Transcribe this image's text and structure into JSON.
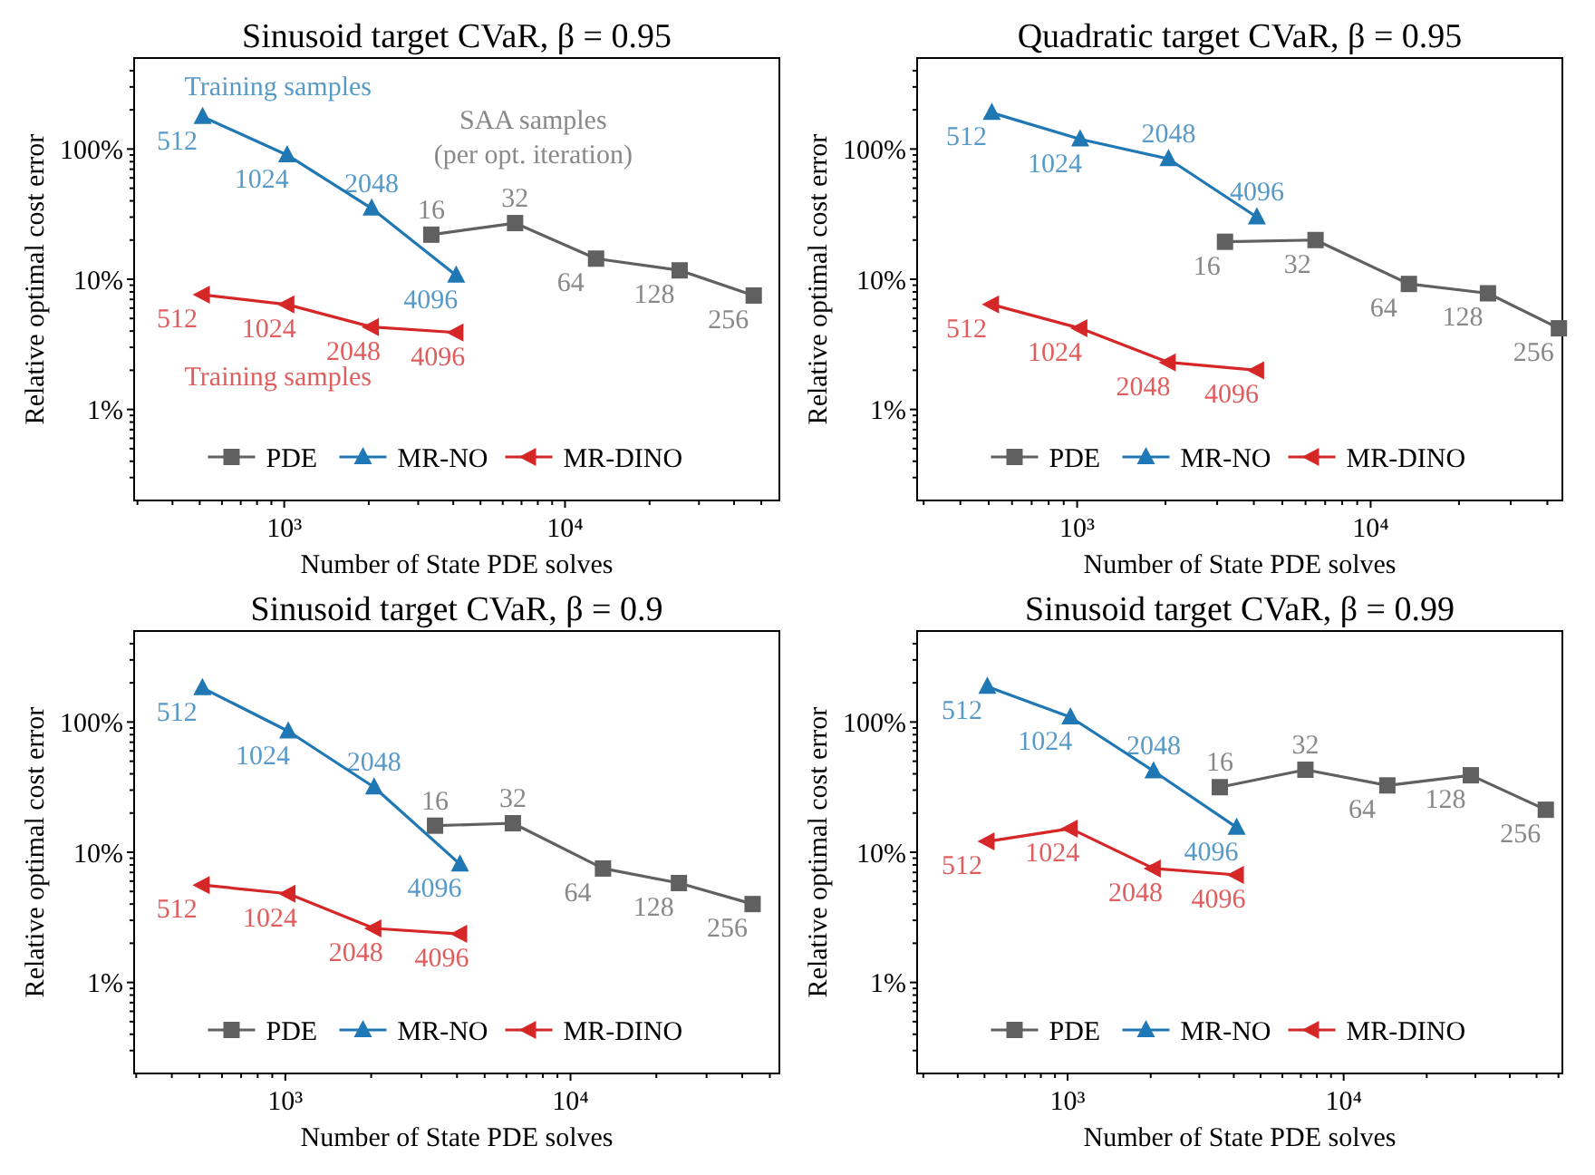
{
  "chart_data": [
    {
      "type": "line",
      "title": "Sinusoid target CVaR, β = 0.95",
      "xlabel": "Number of State PDE solves",
      "ylabel": "Relative optimal cost error",
      "log": "xy",
      "legend": "bottom",
      "xlim": [
        292,
        58000
      ],
      "ylim": [
        0.2,
        500
      ],
      "xticks": [
        {
          "value": 300,
          "label": null
        },
        {
          "value": 400,
          "label": null
        },
        {
          "value": 500,
          "label": null
        },
        {
          "value": 600,
          "label": null
        },
        {
          "value": 700,
          "label": null
        },
        {
          "value": 800,
          "label": null
        },
        {
          "value": 900,
          "label": null
        },
        {
          "value": 1000,
          "label": "10³"
        },
        {
          "value": 2000,
          "label": null
        },
        {
          "value": 3000,
          "label": null
        },
        {
          "value": 4000,
          "label": null
        },
        {
          "value": 5000,
          "label": null
        },
        {
          "value": 6000,
          "label": null
        },
        {
          "value": 7000,
          "label": null
        },
        {
          "value": 8000,
          "label": null
        },
        {
          "value": 9000,
          "label": null
        },
        {
          "value": 10000,
          "label": "10⁴"
        },
        {
          "value": 20000,
          "label": null
        },
        {
          "value": 30000,
          "label": null
        },
        {
          "value": 40000,
          "label": null
        },
        {
          "value": 50000,
          "label": null
        }
      ],
      "yticks": [
        {
          "value": 0.3,
          "label": null
        },
        {
          "value": 0.4,
          "label": null
        },
        {
          "value": 0.5,
          "label": null
        },
        {
          "value": 0.6,
          "label": null
        },
        {
          "value": 0.7,
          "label": null
        },
        {
          "value": 0.8,
          "label": null
        },
        {
          "value": 0.9,
          "label": null
        },
        {
          "value": 1,
          "label": "1%"
        },
        {
          "value": 2,
          "label": null
        },
        {
          "value": 3,
          "label": null
        },
        {
          "value": 4,
          "label": null
        },
        {
          "value": 5,
          "label": null
        },
        {
          "value": 6,
          "label": null
        },
        {
          "value": 7,
          "label": null
        },
        {
          "value": 8,
          "label": null
        },
        {
          "value": 9,
          "label": null
        },
        {
          "value": 10,
          "label": "10%"
        },
        {
          "value": 20,
          "label": null
        },
        {
          "value": 30,
          "label": null
        },
        {
          "value": 40,
          "label": null
        },
        {
          "value": 50,
          "label": null
        },
        {
          "value": 60,
          "label": null
        },
        {
          "value": 70,
          "label": null
        },
        {
          "value": 80,
          "label": null
        },
        {
          "value": 90,
          "label": null
        },
        {
          "value": 100,
          "label": "100%"
        },
        {
          "value": 200,
          "label": null
        },
        {
          "value": 300,
          "label": null
        },
        {
          "value": 400,
          "label": null
        }
      ],
      "series": [
        {
          "name": "PDE",
          "color": "#606060",
          "marker": "square",
          "x": [
            3340,
            6640,
            12900,
            25600,
            47000
          ],
          "values": [
            22,
            27,
            14.4,
            11.7,
            7.5
          ]
        },
        {
          "name": "MR-NO",
          "color": "#1f77b4",
          "marker": "triangle",
          "x": [
            512,
            1024,
            2048,
            4096
          ],
          "values": [
            177,
            90,
            35,
            10.7
          ]
        },
        {
          "name": "MR-DINO",
          "color": "#d62728",
          "marker": "triangle-left",
          "x": [
            512,
            1024,
            2048,
            4096
          ],
          "values": [
            7.6,
            6.4,
            4.3,
            3.9
          ]
        }
      ],
      "annotations": [
        {
          "text": "Training samples",
          "x": 512,
          "y": 177
        },
        {
          "text": "Training samples",
          "x": 512,
          "y": 7.6
        },
        {
          "text": "SAA samples (per opt. iteration)",
          "x": 6640,
          "y": 27
        },
        {
          "text": "16",
          "x": 3340,
          "y": 22
        },
        {
          "text": "32",
          "x": 6640,
          "y": 27
        },
        {
          "text": "64",
          "x": 12900,
          "y": 14.4
        },
        {
          "text": "128",
          "x": 25600,
          "y": 11.7
        },
        {
          "text": "256",
          "x": 47000,
          "y": 7.5
        },
        {
          "text": "512",
          "x": 512,
          "y": 177
        },
        {
          "text": "1024",
          "x": 1024,
          "y": 90
        },
        {
          "text": "2048",
          "x": 2048,
          "y": 35
        },
        {
          "text": "4096",
          "x": 4096,
          "y": 10.7
        },
        {
          "text": "512",
          "x": 512,
          "y": 7.6
        },
        {
          "text": "1024",
          "x": 1024,
          "y": 6.4
        },
        {
          "text": "2048",
          "x": 2048,
          "y": 4.3
        },
        {
          "text": "4096",
          "x": 4096,
          "y": 3.9
        }
      ]
    },
    {
      "type": "line",
      "title": "Quadratic target CVaR, β = 0.95",
      "xlabel": "Number of State PDE solves",
      "ylabel": "Relative optimal cost error",
      "log": "xy",
      "legend": "bottom",
      "xlim": [
        285,
        45000
      ],
      "ylim": [
        0.2,
        500
      ],
      "xticks": [
        {
          "value": 300,
          "label": null
        },
        {
          "value": 400,
          "label": null
        },
        {
          "value": 500,
          "label": null
        },
        {
          "value": 600,
          "label": null
        },
        {
          "value": 700,
          "label": null
        },
        {
          "value": 800,
          "label": null
        },
        {
          "value": 900,
          "label": null
        },
        {
          "value": 1000,
          "label": "10³"
        },
        {
          "value": 2000,
          "label": null
        },
        {
          "value": 3000,
          "label": null
        },
        {
          "value": 4000,
          "label": null
        },
        {
          "value": 5000,
          "label": null
        },
        {
          "value": 6000,
          "label": null
        },
        {
          "value": 7000,
          "label": null
        },
        {
          "value": 8000,
          "label": null
        },
        {
          "value": 9000,
          "label": null
        },
        {
          "value": 10000,
          "label": "10⁴"
        },
        {
          "value": 20000,
          "label": null
        },
        {
          "value": 30000,
          "label": null
        },
        {
          "value": 40000,
          "label": null
        }
      ],
      "yticks": [
        {
          "value": 0.3,
          "label": null
        },
        {
          "value": 0.4,
          "label": null
        },
        {
          "value": 0.5,
          "label": null
        },
        {
          "value": 0.6,
          "label": null
        },
        {
          "value": 0.7,
          "label": null
        },
        {
          "value": 0.8,
          "label": null
        },
        {
          "value": 0.9,
          "label": null
        },
        {
          "value": 1,
          "label": "1%"
        },
        {
          "value": 2,
          "label": null
        },
        {
          "value": 3,
          "label": null
        },
        {
          "value": 4,
          "label": null
        },
        {
          "value": 5,
          "label": null
        },
        {
          "value": 6,
          "label": null
        },
        {
          "value": 7,
          "label": null
        },
        {
          "value": 8,
          "label": null
        },
        {
          "value": 9,
          "label": null
        },
        {
          "value": 10,
          "label": "10%"
        },
        {
          "value": 20,
          "label": null
        },
        {
          "value": 30,
          "label": null
        },
        {
          "value": 40,
          "label": null
        },
        {
          "value": 50,
          "label": null
        },
        {
          "value": 60,
          "label": null
        },
        {
          "value": 70,
          "label": null
        },
        {
          "value": 80,
          "label": null
        },
        {
          "value": 90,
          "label": null
        },
        {
          "value": 100,
          "label": "100%"
        },
        {
          "value": 200,
          "label": null
        },
        {
          "value": 300,
          "label": null
        },
        {
          "value": 400,
          "label": null
        }
      ],
      "series": [
        {
          "name": "PDE",
          "color": "#606060",
          "marker": "square",
          "x": [
            3190,
            6490,
            13500,
            25100,
            43800
          ],
          "values": [
            19.4,
            20,
            9.2,
            7.8,
            4.2
          ]
        },
        {
          "name": "MR-NO",
          "color": "#1f77b4",
          "marker": "triangle",
          "x": [
            512,
            1024,
            2048,
            4096
          ],
          "values": [
            190,
            119,
            84,
            30
          ]
        },
        {
          "name": "MR-DINO",
          "color": "#d62728",
          "marker": "triangle-left",
          "x": [
            512,
            1024,
            2048,
            4096
          ],
          "values": [
            6.4,
            4.2,
            2.3,
            2
          ]
        }
      ],
      "annotations": [
        {
          "text": "16",
          "x": 3190,
          "y": 19.4
        },
        {
          "text": "32",
          "x": 6490,
          "y": 20
        },
        {
          "text": "64",
          "x": 13500,
          "y": 9.2
        },
        {
          "text": "128",
          "x": 25100,
          "y": 7.8
        },
        {
          "text": "256",
          "x": 43800,
          "y": 4.2
        },
        {
          "text": "512",
          "x": 512,
          "y": 190
        },
        {
          "text": "1024",
          "x": 1024,
          "y": 119
        },
        {
          "text": "2048",
          "x": 2048,
          "y": 84
        },
        {
          "text": "4096",
          "x": 4096,
          "y": 30
        },
        {
          "text": "512",
          "x": 512,
          "y": 6.4
        },
        {
          "text": "1024",
          "x": 1024,
          "y": 4.2
        },
        {
          "text": "2048",
          "x": 2048,
          "y": 2.3
        },
        {
          "text": "4096",
          "x": 4096,
          "y": 2
        }
      ]
    },
    {
      "type": "line",
      "title": "Sinusoid target CVaR, β = 0.9",
      "xlabel": "Number of State PDE solves",
      "ylabel": "Relative optimal cost error",
      "log": "xy",
      "legend": "bottom",
      "xlim": [
        295,
        54000
      ],
      "ylim": [
        0.2,
        500
      ],
      "xticks": [
        {
          "value": 300,
          "label": null
        },
        {
          "value": 400,
          "label": null
        },
        {
          "value": 500,
          "label": null
        },
        {
          "value": 600,
          "label": null
        },
        {
          "value": 700,
          "label": null
        },
        {
          "value": 800,
          "label": null
        },
        {
          "value": 900,
          "label": null
        },
        {
          "value": 1000,
          "label": "10³"
        },
        {
          "value": 2000,
          "label": null
        },
        {
          "value": 3000,
          "label": null
        },
        {
          "value": 4000,
          "label": null
        },
        {
          "value": 5000,
          "label": null
        },
        {
          "value": 6000,
          "label": null
        },
        {
          "value": 7000,
          "label": null
        },
        {
          "value": 8000,
          "label": null
        },
        {
          "value": 9000,
          "label": null
        },
        {
          "value": 10000,
          "label": "10⁴"
        },
        {
          "value": 20000,
          "label": null
        },
        {
          "value": 30000,
          "label": null
        },
        {
          "value": 40000,
          "label": null
        },
        {
          "value": 50000,
          "label": null
        }
      ],
      "yticks": [
        {
          "value": 0.3,
          "label": null
        },
        {
          "value": 0.4,
          "label": null
        },
        {
          "value": 0.5,
          "label": null
        },
        {
          "value": 0.6,
          "label": null
        },
        {
          "value": 0.7,
          "label": null
        },
        {
          "value": 0.8,
          "label": null
        },
        {
          "value": 0.9,
          "label": null
        },
        {
          "value": 1,
          "label": "1%"
        },
        {
          "value": 2,
          "label": null
        },
        {
          "value": 3,
          "label": null
        },
        {
          "value": 4,
          "label": null
        },
        {
          "value": 5,
          "label": null
        },
        {
          "value": 6,
          "label": null
        },
        {
          "value": 7,
          "label": null
        },
        {
          "value": 8,
          "label": null
        },
        {
          "value": 9,
          "label": null
        },
        {
          "value": 10,
          "label": "10%"
        },
        {
          "value": 20,
          "label": null
        },
        {
          "value": 30,
          "label": null
        },
        {
          "value": 40,
          "label": null
        },
        {
          "value": 50,
          "label": null
        },
        {
          "value": 60,
          "label": null
        },
        {
          "value": 70,
          "label": null
        },
        {
          "value": 80,
          "label": null
        },
        {
          "value": 90,
          "label": null
        },
        {
          "value": 100,
          "label": "100%"
        },
        {
          "value": 200,
          "label": null
        },
        {
          "value": 300,
          "label": null
        },
        {
          "value": 400,
          "label": null
        }
      ],
      "series": [
        {
          "name": "PDE",
          "color": "#606060",
          "marker": "square",
          "x": [
            3350,
            6280,
            13000,
            24000,
            43500
          ],
          "values": [
            16,
            16.7,
            7.5,
            5.8,
            4
          ]
        },
        {
          "name": "MR-NO",
          "color": "#1f77b4",
          "marker": "triangle",
          "x": [
            512,
            1024,
            2048,
            4096
          ],
          "values": [
            183,
            85,
            31.6,
            8.1
          ]
        },
        {
          "name": "MR-DINO",
          "color": "#d62728",
          "marker": "triangle-left",
          "x": [
            512,
            1024,
            2048,
            4096
          ],
          "values": [
            5.6,
            4.8,
            2.6,
            2.36
          ]
        }
      ],
      "annotations": [
        {
          "text": "16",
          "x": 3350,
          "y": 16
        },
        {
          "text": "32",
          "x": 6280,
          "y": 16.7
        },
        {
          "text": "64",
          "x": 13000,
          "y": 7.5
        },
        {
          "text": "128",
          "x": 24000,
          "y": 5.8
        },
        {
          "text": "256",
          "x": 43500,
          "y": 4
        },
        {
          "text": "512",
          "x": 512,
          "y": 183
        },
        {
          "text": "1024",
          "x": 1024,
          "y": 85
        },
        {
          "text": "2048",
          "x": 2048,
          "y": 31.6
        },
        {
          "text": "4096",
          "x": 4096,
          "y": 8.1
        },
        {
          "text": "512",
          "x": 512,
          "y": 5.6
        },
        {
          "text": "1024",
          "x": 1024,
          "y": 4.8
        },
        {
          "text": "2048",
          "x": 2048,
          "y": 2.6
        },
        {
          "text": "4096",
          "x": 4096,
          "y": 2.36
        }
      ]
    },
    {
      "type": "line",
      "title": "Sinusoid target CVaR, β = 0.99",
      "xlabel": "Number of State PDE solves",
      "ylabel": "Relative optimal cost error",
      "log": "xy",
      "legend": "bottom",
      "xlim": [
        285,
        62000
      ],
      "ylim": [
        0.2,
        500
      ],
      "xticks": [
        {
          "value": 300,
          "label": null
        },
        {
          "value": 400,
          "label": null
        },
        {
          "value": 500,
          "label": null
        },
        {
          "value": 600,
          "label": null
        },
        {
          "value": 700,
          "label": null
        },
        {
          "value": 800,
          "label": null
        },
        {
          "value": 900,
          "label": null
        },
        {
          "value": 1000,
          "label": "10³"
        },
        {
          "value": 2000,
          "label": null
        },
        {
          "value": 3000,
          "label": null
        },
        {
          "value": 4000,
          "label": null
        },
        {
          "value": 5000,
          "label": null
        },
        {
          "value": 6000,
          "label": null
        },
        {
          "value": 7000,
          "label": null
        },
        {
          "value": 8000,
          "label": null
        },
        {
          "value": 9000,
          "label": null
        },
        {
          "value": 10000,
          "label": "10⁴"
        },
        {
          "value": 20000,
          "label": null
        },
        {
          "value": 30000,
          "label": null
        },
        {
          "value": 40000,
          "label": null
        },
        {
          "value": 50000,
          "label": null
        },
        {
          "value": 60000,
          "label": null
        }
      ],
      "yticks": [
        {
          "value": 0.3,
          "label": null
        },
        {
          "value": 0.4,
          "label": null
        },
        {
          "value": 0.5,
          "label": null
        },
        {
          "value": 0.6,
          "label": null
        },
        {
          "value": 0.7,
          "label": null
        },
        {
          "value": 0.8,
          "label": null
        },
        {
          "value": 0.9,
          "label": null
        },
        {
          "value": 1,
          "label": "1%"
        },
        {
          "value": 2,
          "label": null
        },
        {
          "value": 3,
          "label": null
        },
        {
          "value": 4,
          "label": null
        },
        {
          "value": 5,
          "label": null
        },
        {
          "value": 6,
          "label": null
        },
        {
          "value": 7,
          "label": null
        },
        {
          "value": 8,
          "label": null
        },
        {
          "value": 9,
          "label": null
        },
        {
          "value": 10,
          "label": "10%"
        },
        {
          "value": 20,
          "label": null
        },
        {
          "value": 30,
          "label": null
        },
        {
          "value": 40,
          "label": null
        },
        {
          "value": 50,
          "label": null
        },
        {
          "value": 60,
          "label": null
        },
        {
          "value": 70,
          "label": null
        },
        {
          "value": 80,
          "label": null
        },
        {
          "value": 90,
          "label": null
        },
        {
          "value": 100,
          "label": "100%"
        },
        {
          "value": 200,
          "label": null
        },
        {
          "value": 300,
          "label": null
        },
        {
          "value": 400,
          "label": null
        }
      ],
      "series": [
        {
          "name": "PDE",
          "color": "#606060",
          "marker": "square",
          "x": [
            3560,
            7270,
            14400,
            28900,
            54000
          ],
          "values": [
            31.6,
            43,
            32.6,
            39,
            21.2
          ]
        },
        {
          "name": "MR-NO",
          "color": "#1f77b4",
          "marker": "triangle",
          "x": [
            512,
            1024,
            2048,
            4096
          ],
          "values": [
            187,
            109,
            42,
            15.5
          ]
        },
        {
          "name": "MR-DINO",
          "color": "#d62728",
          "marker": "triangle-left",
          "x": [
            512,
            1024,
            2048,
            4096
          ],
          "values": [
            12.1,
            15.2,
            7.5,
            6.7
          ]
        }
      ],
      "annotations": [
        {
          "text": "16",
          "x": 3560,
          "y": 31.6
        },
        {
          "text": "32",
          "x": 7270,
          "y": 43
        },
        {
          "text": "64",
          "x": 14400,
          "y": 32.6
        },
        {
          "text": "128",
          "x": 28900,
          "y": 39
        },
        {
          "text": "256",
          "x": 54000,
          "y": 21.2
        },
        {
          "text": "512",
          "x": 512,
          "y": 187
        },
        {
          "text": "1024",
          "x": 1024,
          "y": 109
        },
        {
          "text": "2048",
          "x": 2048,
          "y": 42
        },
        {
          "text": "4096",
          "x": 4096,
          "y": 15.5
        },
        {
          "text": "512",
          "x": 512,
          "y": 12.1
        },
        {
          "text": "1024",
          "x": 1024,
          "y": 15.2
        },
        {
          "text": "2048",
          "x": 2048,
          "y": 7.5
        },
        {
          "text": "4096",
          "x": 4096,
          "y": 6.7
        }
      ]
    }
  ]
}
